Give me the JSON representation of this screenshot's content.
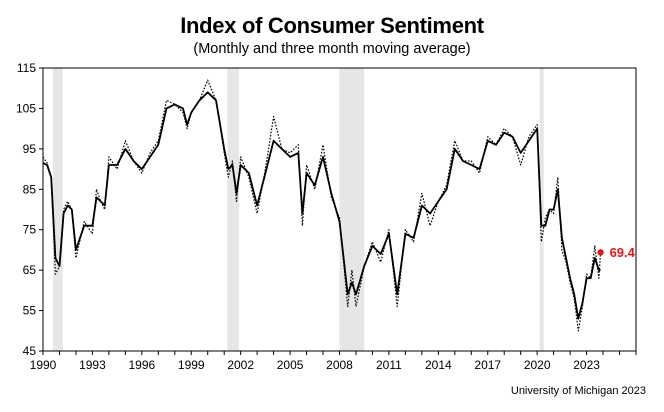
{
  "title": "Index of Consumer Sentiment",
  "subtitle": "(Monthly and three month moving average)",
  "source": "University of Michigan 2023",
  "colors": {
    "line": "#000000",
    "recession": "#e6e6e6",
    "highlight": "#e8141b"
  },
  "chart_data": {
    "type": "line",
    "title": "Index of Consumer Sentiment",
    "subtitle": "(Monthly and three month moving average)",
    "xlabel": "",
    "ylabel": "",
    "xlim": [
      1990,
      2026
    ],
    "ylim": [
      45,
      115
    ],
    "y_ticks": [
      45,
      55,
      65,
      75,
      85,
      95,
      105,
      115
    ],
    "x_ticks": [
      1990,
      1993,
      1996,
      1999,
      2002,
      2005,
      2008,
      2011,
      2014,
      2017,
      2020,
      2023
    ],
    "grid": false,
    "recessions": [
      [
        1990.6,
        1991.2
      ],
      [
        2001.2,
        2001.9
      ],
      [
        2008.0,
        2009.5
      ],
      [
        2020.15,
        2020.4
      ]
    ],
    "series": [
      {
        "name": "",
        "style": "monthly (dotted)",
        "points": [
          [
            1990.0,
            93.0
          ],
          [
            1990.25,
            91.5
          ],
          [
            1990.5,
            88.0
          ],
          [
            1990.75,
            64.0
          ],
          [
            1991.0,
            66.0
          ],
          [
            1991.25,
            80.0
          ],
          [
            1991.5,
            82.0
          ],
          [
            1991.75,
            80.0
          ],
          [
            1992.0,
            68.0
          ],
          [
            1992.5,
            77.0
          ],
          [
            1993.0,
            74.0
          ],
          [
            1993.25,
            85.0
          ],
          [
            1993.5,
            82.0
          ],
          [
            1993.75,
            80.0
          ],
          [
            1994.0,
            93.0
          ],
          [
            1994.5,
            90.0
          ],
          [
            1995.0,
            97.0
          ],
          [
            1995.5,
            92.0
          ],
          [
            1996.0,
            89.0
          ],
          [
            1996.5,
            94.0
          ],
          [
            1997.0,
            97.0
          ],
          [
            1997.5,
            107.0
          ],
          [
            1998.0,
            106.0
          ],
          [
            1998.5,
            104.0
          ],
          [
            1998.75,
            100.0
          ],
          [
            1999.0,
            104.0
          ],
          [
            1999.5,
            107.0
          ],
          [
            2000.0,
            112.0
          ],
          [
            2000.5,
            107.0
          ],
          [
            2001.0,
            94.0
          ],
          [
            2001.25,
            88.0
          ],
          [
            2001.5,
            92.0
          ],
          [
            2001.75,
            82.0
          ],
          [
            2002.0,
            93.0
          ],
          [
            2002.5,
            88.0
          ],
          [
            2003.0,
            79.0
          ],
          [
            2003.5,
            90.0
          ],
          [
            2004.0,
            103.0
          ],
          [
            2004.5,
            95.0
          ],
          [
            2005.0,
            94.0
          ],
          [
            2005.5,
            96.0
          ],
          [
            2005.75,
            76.0
          ],
          [
            2006.0,
            91.0
          ],
          [
            2006.5,
            85.0
          ],
          [
            2007.0,
            96.0
          ],
          [
            2007.5,
            83.0
          ],
          [
            2008.0,
            78.0
          ],
          [
            2008.5,
            56.0
          ],
          [
            2008.75,
            65.0
          ],
          [
            2009.0,
            56.0
          ],
          [
            2009.5,
            66.0
          ],
          [
            2010.0,
            72.0
          ],
          [
            2010.5,
            67.0
          ],
          [
            2011.0,
            75.0
          ],
          [
            2011.5,
            56.0
          ],
          [
            2012.0,
            75.0
          ],
          [
            2012.5,
            72.0
          ],
          [
            2013.0,
            84.0
          ],
          [
            2013.5,
            76.0
          ],
          [
            2014.0,
            82.0
          ],
          [
            2014.5,
            86.0
          ],
          [
            2015.0,
            97.0
          ],
          [
            2015.5,
            92.0
          ],
          [
            2016.0,
            92.0
          ],
          [
            2016.5,
            89.0
          ],
          [
            2017.0,
            98.0
          ],
          [
            2017.5,
            96.0
          ],
          [
            2018.0,
            100.0
          ],
          [
            2018.5,
            98.0
          ],
          [
            2019.0,
            91.0
          ],
          [
            2019.5,
            98.0
          ],
          [
            2020.0,
            101.0
          ],
          [
            2020.25,
            72.0
          ],
          [
            2020.5,
            78.0
          ],
          [
            2020.75,
            80.0
          ],
          [
            2021.0,
            79.0
          ],
          [
            2021.25,
            88.0
          ],
          [
            2021.5,
            70.0
          ],
          [
            2021.75,
            67.0
          ],
          [
            2022.0,
            62.0
          ],
          [
            2022.25,
            58.0
          ],
          [
            2022.5,
            50.0
          ],
          [
            2022.75,
            56.0
          ],
          [
            2023.0,
            64.0
          ],
          [
            2023.25,
            63.0
          ],
          [
            2023.5,
            71.0
          ],
          [
            2023.75,
            63.0
          ],
          [
            2023.85,
            69.4
          ]
        ]
      },
      {
        "name": "",
        "style": "three month moving average (solid)",
        "points": [
          [
            1990.0,
            91.5
          ],
          [
            1990.25,
            91.0
          ],
          [
            1990.5,
            88.0
          ],
          [
            1990.75,
            68.0
          ],
          [
            1991.0,
            66.0
          ],
          [
            1991.25,
            79.0
          ],
          [
            1991.5,
            81.0
          ],
          [
            1991.75,
            80.0
          ],
          [
            1992.0,
            70.0
          ],
          [
            1992.5,
            76.0
          ],
          [
            1993.0,
            76.0
          ],
          [
            1993.25,
            83.0
          ],
          [
            1993.5,
            82.0
          ],
          [
            1993.75,
            81.0
          ],
          [
            1994.0,
            91.0
          ],
          [
            1994.5,
            91.0
          ],
          [
            1995.0,
            95.0
          ],
          [
            1995.5,
            92.0
          ],
          [
            1996.0,
            90.0
          ],
          [
            1996.5,
            93.0
          ],
          [
            1997.0,
            96.0
          ],
          [
            1997.5,
            105.0
          ],
          [
            1998.0,
            106.0
          ],
          [
            1998.5,
            105.0
          ],
          [
            1998.75,
            101.0
          ],
          [
            1999.0,
            104.0
          ],
          [
            1999.5,
            107.0
          ],
          [
            2000.0,
            109.0
          ],
          [
            2000.5,
            107.0
          ],
          [
            2001.0,
            95.0
          ],
          [
            2001.25,
            90.0
          ],
          [
            2001.5,
            91.0
          ],
          [
            2001.75,
            84.0
          ],
          [
            2002.0,
            91.0
          ],
          [
            2002.5,
            89.0
          ],
          [
            2003.0,
            81.0
          ],
          [
            2003.5,
            89.0
          ],
          [
            2004.0,
            97.0
          ],
          [
            2004.5,
            95.0
          ],
          [
            2005.0,
            93.0
          ],
          [
            2005.5,
            94.0
          ],
          [
            2005.75,
            79.0
          ],
          [
            2006.0,
            89.0
          ],
          [
            2006.5,
            86.0
          ],
          [
            2007.0,
            93.0
          ],
          [
            2007.5,
            84.0
          ],
          [
            2008.0,
            77.0
          ],
          [
            2008.5,
            59.0
          ],
          [
            2008.75,
            62.0
          ],
          [
            2009.0,
            59.0
          ],
          [
            2009.5,
            66.0
          ],
          [
            2010.0,
            71.0
          ],
          [
            2010.5,
            69.0
          ],
          [
            2011.0,
            74.0
          ],
          [
            2011.5,
            59.0
          ],
          [
            2012.0,
            74.0
          ],
          [
            2012.5,
            73.0
          ],
          [
            2013.0,
            81.0
          ],
          [
            2013.5,
            79.0
          ],
          [
            2014.0,
            82.0
          ],
          [
            2014.5,
            85.0
          ],
          [
            2015.0,
            95.0
          ],
          [
            2015.5,
            92.0
          ],
          [
            2016.0,
            91.0
          ],
          [
            2016.5,
            90.0
          ],
          [
            2017.0,
            97.0
          ],
          [
            2017.5,
            96.0
          ],
          [
            2018.0,
            99.0
          ],
          [
            2018.5,
            98.0
          ],
          [
            2019.0,
            94.0
          ],
          [
            2019.5,
            97.0
          ],
          [
            2020.0,
            100.0
          ],
          [
            2020.25,
            76.0
          ],
          [
            2020.5,
            76.0
          ],
          [
            2020.75,
            80.0
          ],
          [
            2021.0,
            80.0
          ],
          [
            2021.25,
            85.0
          ],
          [
            2021.5,
            73.0
          ],
          [
            2021.75,
            68.0
          ],
          [
            2022.0,
            63.0
          ],
          [
            2022.25,
            59.0
          ],
          [
            2022.5,
            53.0
          ],
          [
            2022.75,
            57.0
          ],
          [
            2023.0,
            63.0
          ],
          [
            2023.25,
            63.0
          ],
          [
            2023.5,
            68.0
          ],
          [
            2023.75,
            65.0
          ],
          [
            2023.85,
            65.0
          ]
        ]
      }
    ],
    "annotations": [
      {
        "text": "69.4",
        "x": 2023.85,
        "y": 69.4,
        "color": "#e8141b"
      }
    ]
  }
}
